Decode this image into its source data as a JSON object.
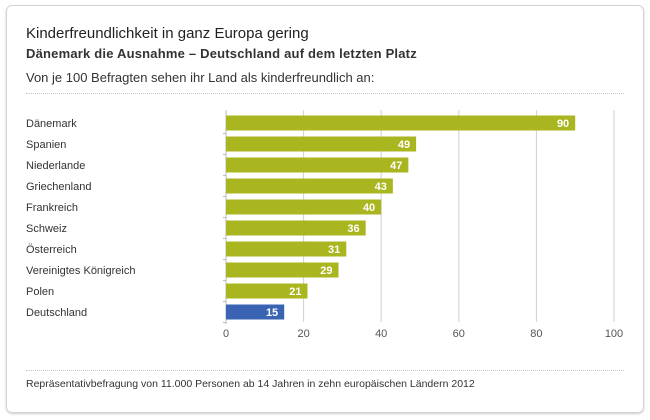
{
  "chart_data": {
    "type": "bar",
    "orientation": "horizontal",
    "title": "Kinderfreundlichkeit in ganz Europa gering",
    "subtitle": "Dänemark die Ausnahme – Deutschland auf dem letzten Platz",
    "description": "Von je 100 Befragten sehen ihr Land als kinderfreundlich an:",
    "categories": [
      "Dänemark",
      "Spanien",
      "Niederlande",
      "Griechenland",
      "Frankreich",
      "Schweiz",
      "Österreich",
      "Vereinigtes Königreich",
      "Polen",
      "Deutschland"
    ],
    "values": [
      90,
      49,
      47,
      43,
      40,
      36,
      31,
      29,
      21,
      15
    ],
    "xlim": [
      0,
      100
    ],
    "xticks": [
      0,
      20,
      40,
      60,
      80,
      100
    ],
    "grid": true,
    "data_labels": true,
    "colors": {
      "default": "#a9b61f",
      "highlight": "#3a63b4"
    },
    "highlight_category": "Deutschland",
    "footnote": "Repräsentativbefragung von 11.000 Personen ab 14 Jahren in zehn europäischen Ländern 2012"
  }
}
